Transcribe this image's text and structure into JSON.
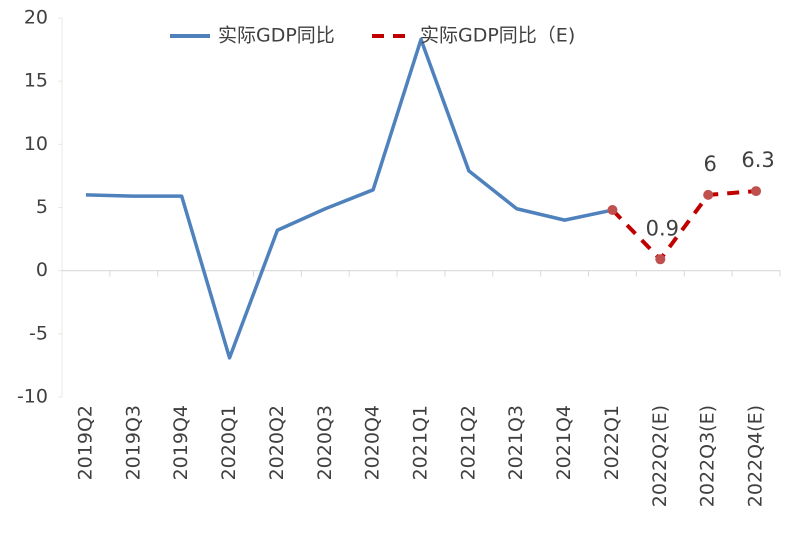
{
  "chart_data": {
    "type": "line",
    "categories": [
      "2019Q2",
      "2019Q3",
      "2019Q4",
      "2020Q1",
      "2020Q2",
      "2020Q3",
      "2020Q4",
      "2021Q1",
      "2021Q2",
      "2021Q3",
      "2021Q4",
      "2022Q1",
      "2022Q2(E)",
      "2022Q3(E)",
      "2022Q4(E)"
    ],
    "series": [
      {
        "name": "实际GDP同比",
        "color": "#4f81bd",
        "values": [
          6.0,
          5.9,
          5.9,
          -6.9,
          3.2,
          4.9,
          6.4,
          18.3,
          7.9,
          4.9,
          4.0,
          4.8,
          null,
          null,
          null
        ]
      },
      {
        "name": "实际GDP同比（E)",
        "color": "#c00000",
        "marker_color": "#c0504d",
        "dashed": true,
        "values": [
          null,
          null,
          null,
          null,
          null,
          null,
          null,
          null,
          null,
          null,
          null,
          4.8,
          0.9,
          6,
          6.3
        ],
        "value_labels": [
          null,
          null,
          null,
          null,
          null,
          null,
          null,
          null,
          null,
          null,
          null,
          null,
          "0.9",
          "6",
          "6.3"
        ]
      }
    ],
    "ylim": [
      -10,
      20
    ],
    "yticks": [
      -10,
      -5,
      0,
      5,
      10,
      15,
      20
    ],
    "grid": false
  }
}
